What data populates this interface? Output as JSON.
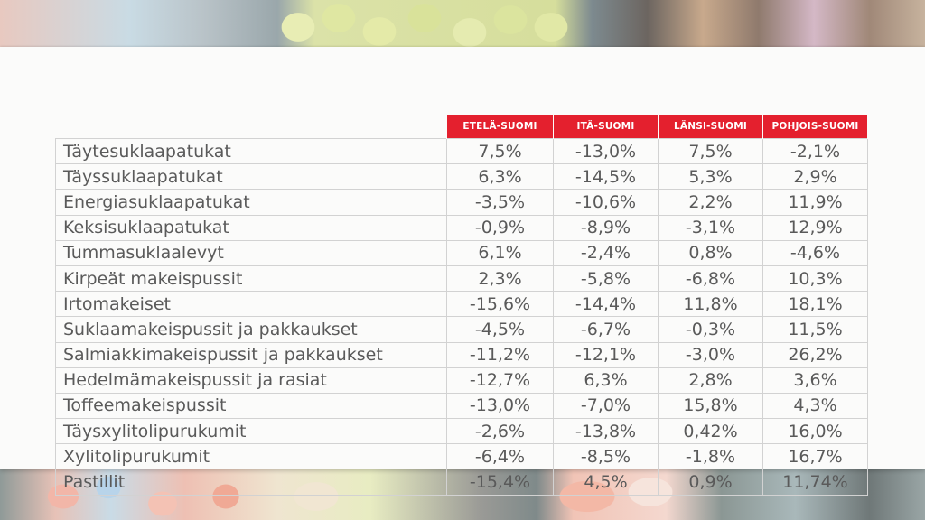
{
  "background": {
    "top_image": "candy-display-photo-top",
    "bottom_image": "candy-display-photo-bottom"
  },
  "colors": {
    "header_red": "#e4202e",
    "header_text": "#ffffff",
    "cell_text": "#5a5a5a",
    "grid_line": "#d2d2d2",
    "panel_bg": "#fbfbfa"
  },
  "table": {
    "columns": [
      "ETELÄ-SUOMI",
      "ITÄ-SUOMI",
      "LÄNSI-SUOMI",
      "POHJOIS-SUOMI"
    ],
    "rows": [
      {
        "label": "Täytesuklaapatukat",
        "values": [
          "7,5%",
          "-13,0%",
          "7,5%",
          "-2,1%"
        ]
      },
      {
        "label": "Täyssuklaapatukat",
        "values": [
          "6,3%",
          "-14,5%",
          "5,3%",
          "2,9%"
        ]
      },
      {
        "label": "Energiasuklaapatukat",
        "values": [
          "-3,5%",
          "-10,6%",
          "2,2%",
          "11,9%"
        ]
      },
      {
        "label": "Keksisuklaapatukat",
        "values": [
          "-0,9%",
          "-8,9%",
          "-3,1%",
          "12,9%"
        ]
      },
      {
        "label": "Tummasuklaalevyt",
        "values": [
          "6,1%",
          "-2,4%",
          "0,8%",
          "-4,6%"
        ]
      },
      {
        "label": "Kirpeät makeispussit",
        "values": [
          "2,3%",
          "-5,8%",
          "-6,8%",
          "10,3%"
        ]
      },
      {
        "label": "Irtomakeiset",
        "values": [
          "-15,6%",
          "-14,4%",
          "11,8%",
          "18,1%"
        ]
      },
      {
        "label": "Suklaamakeispussit ja pakkaukset",
        "values": [
          "-4,5%",
          "-6,7%",
          "-0,3%",
          "11,5%"
        ]
      },
      {
        "label": "Salmiakkimakeispussit ja pakkaukset",
        "values": [
          "-11,2%",
          "-12,1%",
          "-3,0%",
          "26,2%"
        ]
      },
      {
        "label": "Hedelmämakeispussit ja rasiat",
        "values": [
          "-12,7%",
          "6,3%",
          "2,8%",
          "3,6%"
        ]
      },
      {
        "label": "Toffeemakeispussit",
        "values": [
          "-13,0%",
          "-7,0%",
          "15,8%",
          "4,3%"
        ]
      },
      {
        "label": "Täysxylitolipurukumit",
        "values": [
          "-2,6%",
          "-13,8%",
          "0,42%",
          "16,0%"
        ]
      },
      {
        "label": "Xylitolipurukumit",
        "values": [
          "-6,4%",
          "-8,5%",
          "-1,8%",
          "16,7%"
        ]
      },
      {
        "label": "Pastillit",
        "values": [
          "-15,4%",
          "4,5%",
          "0,9%",
          "11,74%"
        ]
      }
    ]
  }
}
